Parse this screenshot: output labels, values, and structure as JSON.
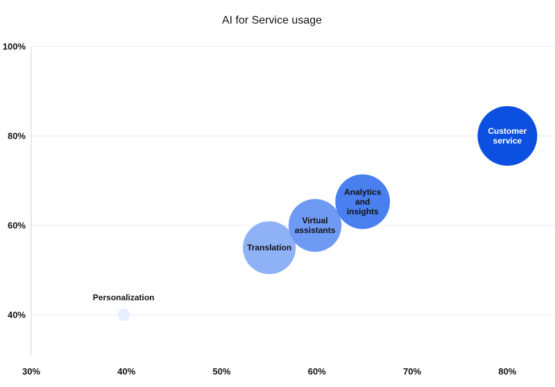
{
  "chart_data": {
    "type": "bubble",
    "title": "AI for Service usage",
    "xlabel": "",
    "ylabel": "",
    "xlim": [
      30,
      85
    ],
    "ylim": [
      31,
      100
    ],
    "x_ticks": [
      "30%",
      "40%",
      "50%",
      "60%",
      "70%",
      "80%"
    ],
    "x_tick_values": [
      30,
      40,
      50,
      60,
      70,
      80
    ],
    "y_ticks": [
      "40%",
      "60%",
      "80%",
      "100%"
    ],
    "y_tick_values": [
      40,
      60,
      80,
      100
    ],
    "grid": "horizontal",
    "points": [
      {
        "label": "Personalization",
        "x": 39.7,
        "y": 40,
        "size": 2,
        "color": "#e6efff",
        "label_color": "#111111",
        "label_position": "above"
      },
      {
        "label": "Translation",
        "x": 55,
        "y": 55,
        "size": 59,
        "color": "#8fb2f7",
        "label_color": "#111111",
        "label_position": "center"
      },
      {
        "label": "Virtual assistants",
        "x": 59.8,
        "y": 60,
        "size": 59,
        "color": "#6f9af4",
        "label_color": "#111111",
        "label_position": "center"
      },
      {
        "label": "Analytics and insights",
        "x": 64.8,
        "y": 65.3,
        "size": 63,
        "color": "#4a7ff0",
        "label_color": "#111111",
        "label_position": "center"
      },
      {
        "label": "Customer service",
        "x": 80,
        "y": 80,
        "size": 75,
        "color": "#0b50e0",
        "label_color": "#ffffff",
        "label_position": "center"
      }
    ]
  }
}
